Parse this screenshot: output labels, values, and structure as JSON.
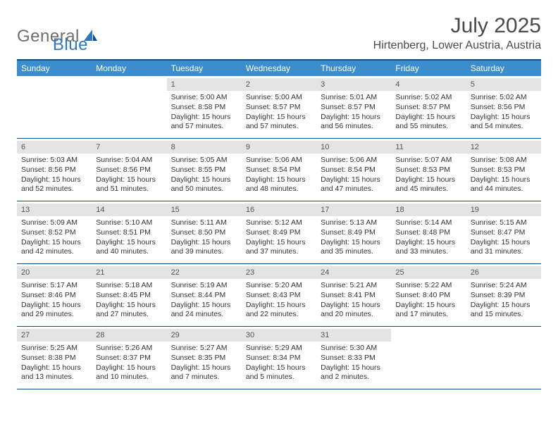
{
  "brand": {
    "word1": "General",
    "word2": "Blue"
  },
  "title": "July 2025",
  "location": "Hirtenberg, Lower Austria, Austria",
  "colors": {
    "header_bg": "#3c8dcc",
    "border": "#0b4f8a",
    "date_bg": "#e4e4e4",
    "text": "#333333",
    "logo_gray": "#6f6f6f",
    "logo_blue": "#2f78bf"
  },
  "dayNames": [
    "Sunday",
    "Monday",
    "Tuesday",
    "Wednesday",
    "Thursday",
    "Friday",
    "Saturday"
  ],
  "weeks": [
    [
      null,
      null,
      {
        "d": "1",
        "sr": "5:00 AM",
        "ss": "8:58 PM",
        "dl": "15 hours and 57 minutes."
      },
      {
        "d": "2",
        "sr": "5:00 AM",
        "ss": "8:57 PM",
        "dl": "15 hours and 57 minutes."
      },
      {
        "d": "3",
        "sr": "5:01 AM",
        "ss": "8:57 PM",
        "dl": "15 hours and 56 minutes."
      },
      {
        "d": "4",
        "sr": "5:02 AM",
        "ss": "8:57 PM",
        "dl": "15 hours and 55 minutes."
      },
      {
        "d": "5",
        "sr": "5:02 AM",
        "ss": "8:56 PM",
        "dl": "15 hours and 54 minutes."
      }
    ],
    [
      {
        "d": "6",
        "sr": "5:03 AM",
        "ss": "8:56 PM",
        "dl": "15 hours and 52 minutes."
      },
      {
        "d": "7",
        "sr": "5:04 AM",
        "ss": "8:56 PM",
        "dl": "15 hours and 51 minutes."
      },
      {
        "d": "8",
        "sr": "5:05 AM",
        "ss": "8:55 PM",
        "dl": "15 hours and 50 minutes."
      },
      {
        "d": "9",
        "sr": "5:06 AM",
        "ss": "8:54 PM",
        "dl": "15 hours and 48 minutes."
      },
      {
        "d": "10",
        "sr": "5:06 AM",
        "ss": "8:54 PM",
        "dl": "15 hours and 47 minutes."
      },
      {
        "d": "11",
        "sr": "5:07 AM",
        "ss": "8:53 PM",
        "dl": "15 hours and 45 minutes."
      },
      {
        "d": "12",
        "sr": "5:08 AM",
        "ss": "8:53 PM",
        "dl": "15 hours and 44 minutes."
      }
    ],
    [
      {
        "d": "13",
        "sr": "5:09 AM",
        "ss": "8:52 PM",
        "dl": "15 hours and 42 minutes."
      },
      {
        "d": "14",
        "sr": "5:10 AM",
        "ss": "8:51 PM",
        "dl": "15 hours and 40 minutes."
      },
      {
        "d": "15",
        "sr": "5:11 AM",
        "ss": "8:50 PM",
        "dl": "15 hours and 39 minutes."
      },
      {
        "d": "16",
        "sr": "5:12 AM",
        "ss": "8:49 PM",
        "dl": "15 hours and 37 minutes."
      },
      {
        "d": "17",
        "sr": "5:13 AM",
        "ss": "8:49 PM",
        "dl": "15 hours and 35 minutes."
      },
      {
        "d": "18",
        "sr": "5:14 AM",
        "ss": "8:48 PM",
        "dl": "15 hours and 33 minutes."
      },
      {
        "d": "19",
        "sr": "5:15 AM",
        "ss": "8:47 PM",
        "dl": "15 hours and 31 minutes."
      }
    ],
    [
      {
        "d": "20",
        "sr": "5:17 AM",
        "ss": "8:46 PM",
        "dl": "15 hours and 29 minutes."
      },
      {
        "d": "21",
        "sr": "5:18 AM",
        "ss": "8:45 PM",
        "dl": "15 hours and 27 minutes."
      },
      {
        "d": "22",
        "sr": "5:19 AM",
        "ss": "8:44 PM",
        "dl": "15 hours and 24 minutes."
      },
      {
        "d": "23",
        "sr": "5:20 AM",
        "ss": "8:43 PM",
        "dl": "15 hours and 22 minutes."
      },
      {
        "d": "24",
        "sr": "5:21 AM",
        "ss": "8:41 PM",
        "dl": "15 hours and 20 minutes."
      },
      {
        "d": "25",
        "sr": "5:22 AM",
        "ss": "8:40 PM",
        "dl": "15 hours and 17 minutes."
      },
      {
        "d": "26",
        "sr": "5:24 AM",
        "ss": "8:39 PM",
        "dl": "15 hours and 15 minutes."
      }
    ],
    [
      {
        "d": "27",
        "sr": "5:25 AM",
        "ss": "8:38 PM",
        "dl": "15 hours and 13 minutes."
      },
      {
        "d": "28",
        "sr": "5:26 AM",
        "ss": "8:37 PM",
        "dl": "15 hours and 10 minutes."
      },
      {
        "d": "29",
        "sr": "5:27 AM",
        "ss": "8:35 PM",
        "dl": "15 hours and 7 minutes."
      },
      {
        "d": "30",
        "sr": "5:29 AM",
        "ss": "8:34 PM",
        "dl": "15 hours and 5 minutes."
      },
      {
        "d": "31",
        "sr": "5:30 AM",
        "ss": "8:33 PM",
        "dl": "15 hours and 2 minutes."
      },
      null,
      null
    ]
  ],
  "labels": {
    "sunrise": "Sunrise:",
    "sunset": "Sunset:",
    "daylight": "Daylight:"
  }
}
